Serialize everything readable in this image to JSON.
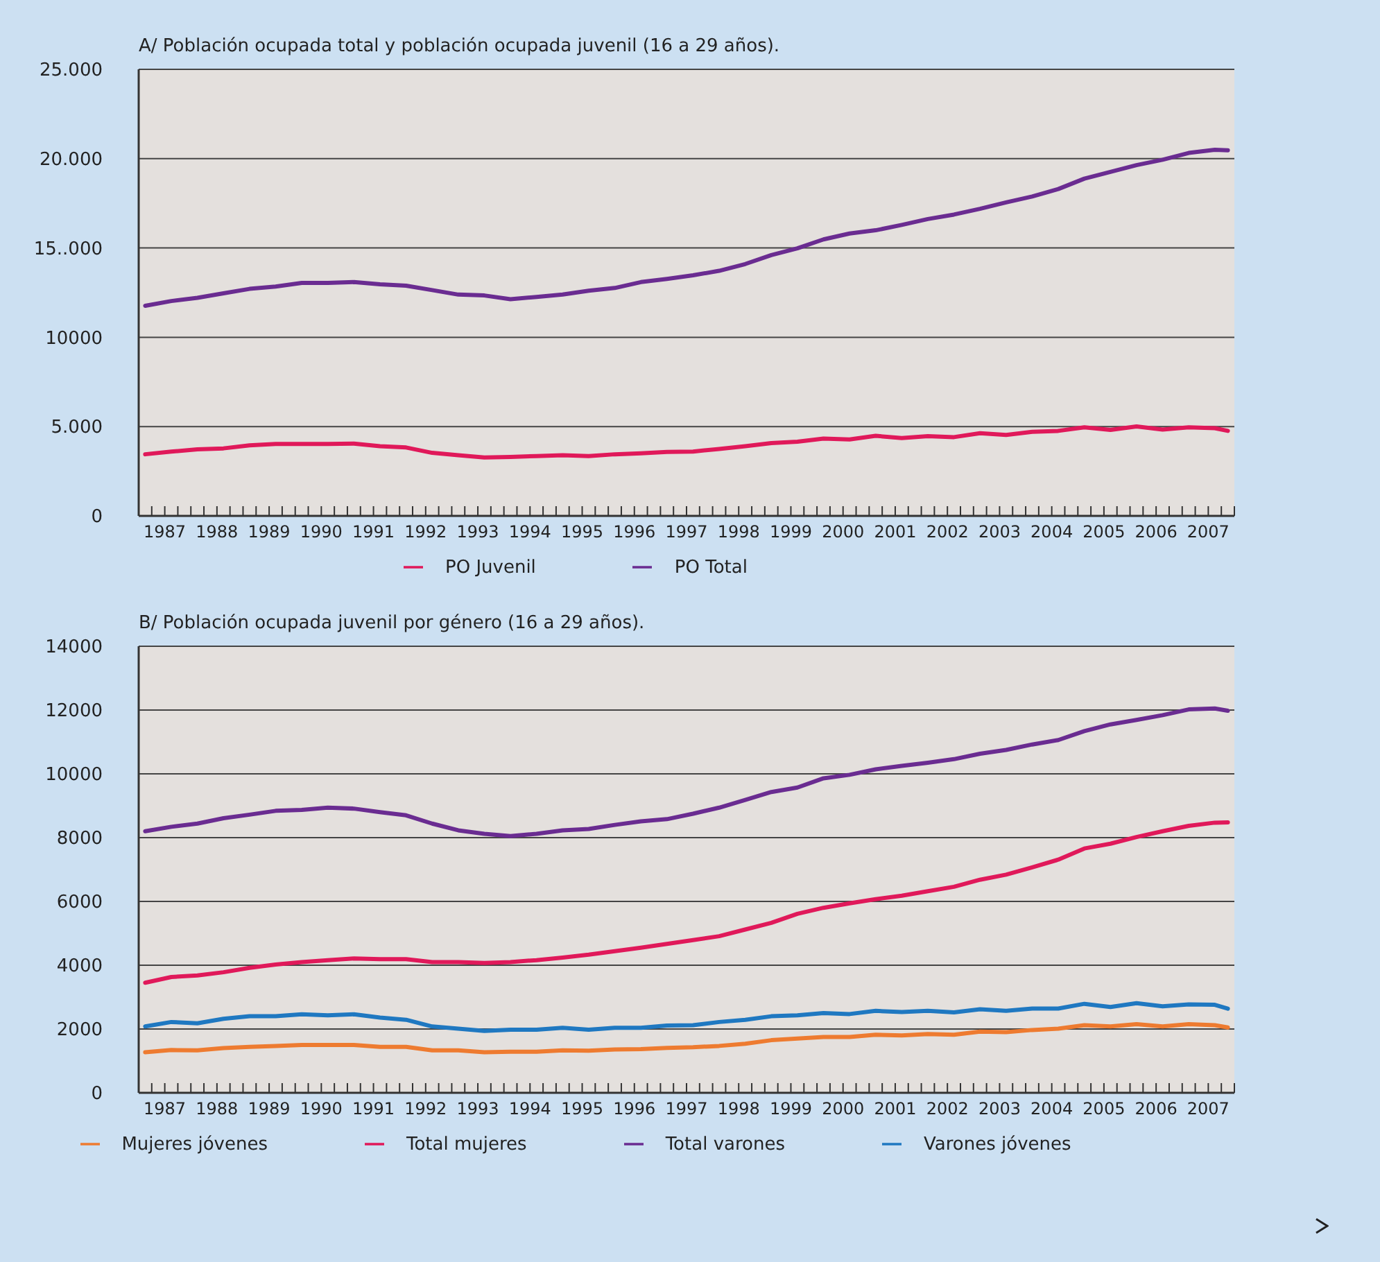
{
  "chart_data": [
    {
      "type": "line",
      "title": "A/ Población ocupada total y población ocupada juvenil (16 a 29 años).",
      "x": [
        1987.125,
        1987.625,
        1988.125,
        1988.625,
        1989.125,
        1989.625,
        1990.125,
        1990.625,
        1991.125,
        1991.625,
        1992.125,
        1992.625,
        1993.125,
        1993.625,
        1994.125,
        1994.625,
        1995.125,
        1995.625,
        1996.125,
        1996.625,
        1997.125,
        1997.625,
        1998.125,
        1998.625,
        1999.125,
        1999.625,
        2000.125,
        2000.625,
        2001.125,
        2001.625,
        2002.125,
        2002.625,
        2003.125,
        2003.625,
        2004.125,
        2004.625,
        2005.125,
        2005.625,
        2006.125,
        2006.625,
        2007.125,
        2007.625,
        2007.875
      ],
      "xlim": [
        1987,
        2008
      ],
      "xticks": [
        {
          "value": 1987,
          "label": null
        },
        {
          "value": 1987.25,
          "label": null
        },
        {
          "value": 1987.5,
          "label": "1987"
        },
        {
          "value": 1987.75,
          "label": null
        },
        {
          "value": 1988,
          "label": null
        },
        {
          "value": 1988.25,
          "label": null
        },
        {
          "value": 1988.5,
          "label": "1988"
        },
        {
          "value": 1988.75,
          "label": null
        },
        {
          "value": 1989,
          "label": null
        },
        {
          "value": 1989.25,
          "label": null
        },
        {
          "value": 1989.5,
          "label": "1989"
        },
        {
          "value": 1989.75,
          "label": null
        },
        {
          "value": 1990,
          "label": null
        },
        {
          "value": 1990.25,
          "label": null
        },
        {
          "value": 1990.5,
          "label": "1990"
        },
        {
          "value": 1990.75,
          "label": null
        },
        {
          "value": 1991,
          "label": null
        },
        {
          "value": 1991.25,
          "label": null
        },
        {
          "value": 1991.5,
          "label": "1991"
        },
        {
          "value": 1991.75,
          "label": null
        },
        {
          "value": 1992,
          "label": null
        },
        {
          "value": 1992.25,
          "label": null
        },
        {
          "value": 1992.5,
          "label": "1992"
        },
        {
          "value": 1992.75,
          "label": null
        },
        {
          "value": 1993,
          "label": null
        },
        {
          "value": 1993.25,
          "label": null
        },
        {
          "value": 1993.5,
          "label": "1993"
        },
        {
          "value": 1993.75,
          "label": null
        },
        {
          "value": 1994,
          "label": null
        },
        {
          "value": 1994.25,
          "label": null
        },
        {
          "value": 1994.5,
          "label": "1994"
        },
        {
          "value": 1994.75,
          "label": null
        },
        {
          "value": 1995,
          "label": null
        },
        {
          "value": 1995.25,
          "label": null
        },
        {
          "value": 1995.5,
          "label": "1995"
        },
        {
          "value": 1995.75,
          "label": null
        },
        {
          "value": 1996,
          "label": null
        },
        {
          "value": 1996.25,
          "label": null
        },
        {
          "value": 1996.5,
          "label": "1996"
        },
        {
          "value": 1996.75,
          "label": null
        },
        {
          "value": 1997,
          "label": null
        },
        {
          "value": 1997.25,
          "label": null
        },
        {
          "value": 1997.5,
          "label": "1997"
        },
        {
          "value": 1997.75,
          "label": null
        },
        {
          "value": 1998,
          "label": null
        },
        {
          "value": 1998.25,
          "label": null
        },
        {
          "value": 1998.5,
          "label": "1998"
        },
        {
          "value": 1998.75,
          "label": null
        },
        {
          "value": 1999,
          "label": null
        },
        {
          "value": 1999.25,
          "label": null
        },
        {
          "value": 1999.5,
          "label": "1999"
        },
        {
          "value": 1999.75,
          "label": null
        },
        {
          "value": 2000,
          "label": null
        },
        {
          "value": 2000.25,
          "label": null
        },
        {
          "value": 2000.5,
          "label": "2000"
        },
        {
          "value": 2000.75,
          "label": null
        },
        {
          "value": 2001,
          "label": null
        },
        {
          "value": 2001.25,
          "label": null
        },
        {
          "value": 2001.5,
          "label": "2001"
        },
        {
          "value": 2001.75,
          "label": null
        },
        {
          "value": 2002,
          "label": null
        },
        {
          "value": 2002.25,
          "label": null
        },
        {
          "value": 2002.5,
          "label": "2002"
        },
        {
          "value": 2002.75,
          "label": null
        },
        {
          "value": 2003,
          "label": null
        },
        {
          "value": 2003.25,
          "label": null
        },
        {
          "value": 2003.5,
          "label": "2003"
        },
        {
          "value": 2003.75,
          "label": null
        },
        {
          "value": 2004,
          "label": null
        },
        {
          "value": 2004.25,
          "label": null
        },
        {
          "value": 2004.5,
          "label": "2004"
        },
        {
          "value": 2004.75,
          "label": null
        },
        {
          "value": 2005,
          "label": null
        },
        {
          "value": 2005.25,
          "label": null
        },
        {
          "value": 2005.5,
          "label": "2005"
        },
        {
          "value": 2005.75,
          "label": null
        },
        {
          "value": 2006,
          "label": null
        },
        {
          "value": 2006.25,
          "label": null
        },
        {
          "value": 2006.5,
          "label": "2006"
        },
        {
          "value": 2006.75,
          "label": null
        },
        {
          "value": 2007,
          "label": null
        },
        {
          "value": 2007.25,
          "label": null
        },
        {
          "value": 2007.5,
          "label": "2007"
        },
        {
          "value": 2007.75,
          "label": null
        },
        {
          "value": 2008,
          "label": null
        }
      ],
      "ylim": [
        0,
        25000
      ],
      "yticks": [
        0,
        {
          "value": 5000,
          "label": "5.000"
        },
        10000,
        {
          "value": 15000,
          "label": "15..000"
        },
        {
          "value": 20000,
          "label": "20.000"
        },
        {
          "value": 25000,
          "label": "25.000"
        }
      ],
      "grid": "y",
      "legend": "bottom",
      "series": [
        {
          "name": "PO Total",
          "color": "#6a2c91",
          "values": [
            11760,
            12030,
            12210,
            12460,
            12710,
            12840,
            13040,
            13040,
            13090,
            12970,
            12890,
            12640,
            12390,
            12340,
            12130,
            12260,
            12390,
            12610,
            12760,
            13090,
            13270,
            13470,
            13720,
            14100,
            14600,
            14980,
            15480,
            15810,
            15990,
            16290,
            16620,
            16870,
            17190,
            17550,
            17880,
            18300,
            18880,
            19260,
            19640,
            19940,
            20320,
            20500,
            20470
          ]
        },
        {
          "name": "PO Juvenil",
          "color": "#e0195a",
          "values": [
            3450,
            3600,
            3730,
            3780,
            3950,
            4030,
            4030,
            4030,
            4050,
            3900,
            3830,
            3530,
            3400,
            3270,
            3300,
            3350,
            3400,
            3350,
            3450,
            3500,
            3580,
            3600,
            3750,
            3900,
            4080,
            4150,
            4330,
            4280,
            4480,
            4360,
            4460,
            4410,
            4630,
            4530,
            4710,
            4760,
            4960,
            4810,
            5010,
            4830,
            4960,
            4910,
            4760
          ]
        }
      ]
    },
    {
      "type": "line",
      "title": "B/ Población ocupada juvenil por género (16 a 29 años).",
      "x": [
        1987.125,
        1987.625,
        1988.125,
        1988.625,
        1989.125,
        1989.625,
        1990.125,
        1990.625,
        1991.125,
        1991.625,
        1992.125,
        1992.625,
        1993.125,
        1993.625,
        1994.125,
        1994.625,
        1995.125,
        1995.625,
        1996.125,
        1996.625,
        1997.125,
        1997.625,
        1998.125,
        1998.625,
        1999.125,
        1999.625,
        2000.125,
        2000.625,
        2001.125,
        2001.625,
        2002.125,
        2002.625,
        2003.125,
        2003.625,
        2004.125,
        2004.625,
        2005.125,
        2005.625,
        2006.125,
        2006.625,
        2007.125,
        2007.625,
        2007.875
      ],
      "xlim": [
        1987,
        2008
      ],
      "xticks": [
        {
          "value": 1987,
          "label": null
        },
        {
          "value": 1987.25,
          "label": null
        },
        {
          "value": 1987.5,
          "label": "1987"
        },
        {
          "value": 1987.75,
          "label": null
        },
        {
          "value": 1988,
          "label": null
        },
        {
          "value": 1988.25,
          "label": null
        },
        {
          "value": 1988.5,
          "label": "1988"
        },
        {
          "value": 1988.75,
          "label": null
        },
        {
          "value": 1989,
          "label": null
        },
        {
          "value": 1989.25,
          "label": null
        },
        {
          "value": 1989.5,
          "label": "1989"
        },
        {
          "value": 1989.75,
          "label": null
        },
        {
          "value": 1990,
          "label": null
        },
        {
          "value": 1990.25,
          "label": null
        },
        {
          "value": 1990.5,
          "label": "1990"
        },
        {
          "value": 1990.75,
          "label": null
        },
        {
          "value": 1991,
          "label": null
        },
        {
          "value": 1991.25,
          "label": null
        },
        {
          "value": 1991.5,
          "label": "1991"
        },
        {
          "value": 1991.75,
          "label": null
        },
        {
          "value": 1992,
          "label": null
        },
        {
          "value": 1992.25,
          "label": null
        },
        {
          "value": 1992.5,
          "label": "1992"
        },
        {
          "value": 1992.75,
          "label": null
        },
        {
          "value": 1993,
          "label": null
        },
        {
          "value": 1993.25,
          "label": null
        },
        {
          "value": 1993.5,
          "label": "1993"
        },
        {
          "value": 1993.75,
          "label": null
        },
        {
          "value": 1994,
          "label": null
        },
        {
          "value": 1994.25,
          "label": null
        },
        {
          "value": 1994.5,
          "label": "1994"
        },
        {
          "value": 1994.75,
          "label": null
        },
        {
          "value": 1995,
          "label": null
        },
        {
          "value": 1995.25,
          "label": null
        },
        {
          "value": 1995.5,
          "label": "1995"
        },
        {
          "value": 1995.75,
          "label": null
        },
        {
          "value": 1996,
          "label": null
        },
        {
          "value": 1996.25,
          "label": null
        },
        {
          "value": 1996.5,
          "label": "1996"
        },
        {
          "value": 1996.75,
          "label": null
        },
        {
          "value": 1997,
          "label": null
        },
        {
          "value": 1997.25,
          "label": null
        },
        {
          "value": 1997.5,
          "label": "1997"
        },
        {
          "value": 1997.75,
          "label": null
        },
        {
          "value": 1998,
          "label": null
        },
        {
          "value": 1998.25,
          "label": null
        },
        {
          "value": 1998.5,
          "label": "1998"
        },
        {
          "value": 1998.75,
          "label": null
        },
        {
          "value": 1999,
          "label": null
        },
        {
          "value": 1999.25,
          "label": null
        },
        {
          "value": 1999.5,
          "label": "1999"
        },
        {
          "value": 1999.75,
          "label": null
        },
        {
          "value": 2000,
          "label": null
        },
        {
          "value": 2000.25,
          "label": null
        },
        {
          "value": 2000.5,
          "label": "2000"
        },
        {
          "value": 2000.75,
          "label": null
        },
        {
          "value": 2001,
          "label": null
        },
        {
          "value": 2001.25,
          "label": null
        },
        {
          "value": 2001.5,
          "label": "2001"
        },
        {
          "value": 2001.75,
          "label": null
        },
        {
          "value": 2002,
          "label": null
        },
        {
          "value": 2002.25,
          "label": null
        },
        {
          "value": 2002.5,
          "label": "2002"
        },
        {
          "value": 2002.75,
          "label": null
        },
        {
          "value": 2003,
          "label": null
        },
        {
          "value": 2003.25,
          "label": null
        },
        {
          "value": 2003.5,
          "label": "2003"
        },
        {
          "value": 2003.75,
          "label": null
        },
        {
          "value": 2004,
          "label": null
        },
        {
          "value": 2004.25,
          "label": null
        },
        {
          "value": 2004.5,
          "label": "2004"
        },
        {
          "value": 2004.75,
          "label": null
        },
        {
          "value": 2005,
          "label": null
        },
        {
          "value": 2005.25,
          "label": null
        },
        {
          "value": 2005.5,
          "label": "2005"
        },
        {
          "value": 2005.75,
          "label": null
        },
        {
          "value": 2006,
          "label": null
        },
        {
          "value": 2006.25,
          "label": null
        },
        {
          "value": 2006.5,
          "label": "2006"
        },
        {
          "value": 2006.75,
          "label": null
        },
        {
          "value": 2007,
          "label": null
        },
        {
          "value": 2007.25,
          "label": null
        },
        {
          "value": 2007.5,
          "label": "2007"
        },
        {
          "value": 2007.75,
          "label": null
        },
        {
          "value": 2008,
          "label": null
        }
      ],
      "ylim": [
        0,
        14000
      ],
      "yticks": [
        0,
        2000,
        4000,
        6000,
        8000,
        10000,
        12000,
        14000
      ],
      "grid": "y",
      "legend": "bottom",
      "series": [
        {
          "name": "Total varones",
          "color": "#6a2c91",
          "values": [
            8200,
            8340,
            8440,
            8610,
            8720,
            8840,
            8870,
            8940,
            8910,
            8800,
            8700,
            8440,
            8230,
            8120,
            8050,
            8120,
            8230,
            8270,
            8400,
            8510,
            8580,
            8750,
            8940,
            9180,
            9430,
            9570,
            9860,
            9970,
            10140,
            10250,
            10350,
            10460,
            10630,
            10750,
            10920,
            11060,
            11340,
            11550,
            11690,
            11840,
            12020,
            12050,
            11980
          ]
        },
        {
          "name": "Varones jóvenes",
          "color": "#1f78c1",
          "values": [
            2080,
            2220,
            2180,
            2320,
            2400,
            2400,
            2460,
            2430,
            2460,
            2360,
            2290,
            2080,
            2010,
            1940,
            1980,
            1980,
            2040,
            1980,
            2040,
            2040,
            2110,
            2120,
            2220,
            2290,
            2400,
            2430,
            2500,
            2470,
            2570,
            2530,
            2570,
            2520,
            2620,
            2570,
            2640,
            2640,
            2790,
            2690,
            2810,
            2710,
            2770,
            2760,
            2640
          ]
        },
        {
          "name": "Total mujeres",
          "color": "#e0195a",
          "values": [
            3450,
            3630,
            3680,
            3780,
            3920,
            4020,
            4100,
            4160,
            4210,
            4190,
            4190,
            4100,
            4100,
            4070,
            4100,
            4160,
            4240,
            4330,
            4440,
            4550,
            4670,
            4790,
            4910,
            5120,
            5330,
            5610,
            5800,
            5940,
            6070,
            6180,
            6320,
            6460,
            6680,
            6840,
            7070,
            7310,
            7660,
            7810,
            8020,
            8200,
            8370,
            8470,
            8480
          ]
        },
        {
          "name": "Mujeres jóvenes",
          "color": "#ee7b30",
          "values": [
            1270,
            1340,
            1330,
            1400,
            1440,
            1470,
            1500,
            1500,
            1500,
            1440,
            1440,
            1330,
            1330,
            1270,
            1290,
            1290,
            1330,
            1320,
            1360,
            1370,
            1410,
            1430,
            1470,
            1540,
            1650,
            1700,
            1750,
            1750,
            1820,
            1800,
            1840,
            1820,
            1920,
            1900,
            1970,
            2010,
            2120,
            2080,
            2150,
            2080,
            2150,
            2120,
            2050
          ]
        }
      ]
    }
  ]
}
